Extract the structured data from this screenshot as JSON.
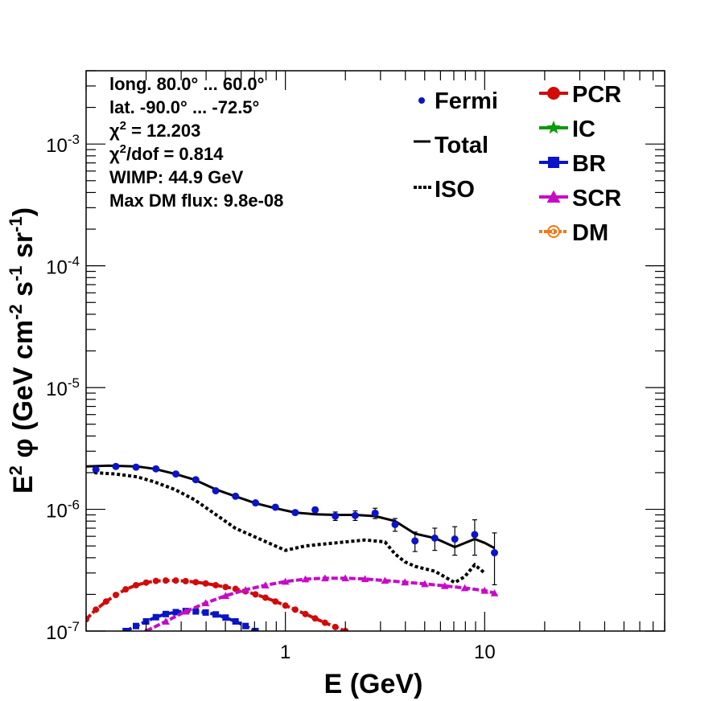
{
  "chart_data": {
    "type": "line",
    "xlabel": "E (GeV)",
    "ylabel_parts": [
      "E",
      "2",
      "  φ (GeV cm",
      "-2",
      " s",
      "-1",
      " sr",
      "-1",
      ")"
    ],
    "xscale": "log",
    "yscale": "log",
    "xlim": [
      0.1,
      80
    ],
    "ylim": [
      1e-07,
      0.004
    ],
    "x_ticks": [
      {
        "value": 1,
        "label": "1"
      },
      {
        "value": 10,
        "label": "10"
      }
    ],
    "y_ticks": [
      {
        "value": 1e-07,
        "mant": "10",
        "exp": "-7"
      },
      {
        "value": 1e-06,
        "mant": "10",
        "exp": "-6"
      },
      {
        "value": 1e-05,
        "mant": "10",
        "exp": "-5"
      },
      {
        "value": 0.0001,
        "mant": "10",
        "exp": "-4"
      },
      {
        "value": 0.001,
        "mant": "10",
        "exp": "-3"
      }
    ],
    "info_lines": [
      {
        "text": "long. 80.0° ... 60.0°"
      },
      {
        "text": "lat. -90.0° ... -72.5°"
      },
      {
        "pre": "χ",
        "sup": "2",
        "post": " = 12.203"
      },
      {
        "pre": "χ",
        "sup": "2",
        "post": "/dof = 0.814"
      },
      {
        "text": "WIMP: 44.9 GeV"
      },
      {
        "text": "Max DM flux: 9.8e-08"
      }
    ],
    "legend_left": [
      {
        "name": "Fermi",
        "style": "dot",
        "color": "#0a14c8"
      },
      {
        "name": "Total",
        "style": "solid",
        "color": "#000000"
      },
      {
        "name": "ISO",
        "style": "dotted",
        "color": "#000000"
      }
    ],
    "legend_right": [
      {
        "name": "PCR",
        "style": "circle",
        "color": "#d20a0a"
      },
      {
        "name": "IC",
        "style": "star",
        "color": "#0a9b0a"
      },
      {
        "name": "BR",
        "style": "square",
        "color": "#0a14c8"
      },
      {
        "name": "SCR",
        "style": "triangle",
        "color": "#c80ac8"
      },
      {
        "name": "DM",
        "style": "opencircle",
        "color": "#f07814"
      }
    ],
    "fermi": {
      "color": "#0a14c8",
      "points": [
        {
          "x": 0.112,
          "y": 2.12e-06,
          "err": 3e-08
        },
        {
          "x": 0.141,
          "y": 2.25e-06,
          "err": 3e-08
        },
        {
          "x": 0.178,
          "y": 2.22e-06,
          "err": 3e-08
        },
        {
          "x": 0.224,
          "y": 2.15e-06,
          "err": 3e-08
        },
        {
          "x": 0.282,
          "y": 1.95e-06,
          "err": 3e-08
        },
        {
          "x": 0.355,
          "y": 1.75e-06,
          "err": 3e-08
        },
        {
          "x": 0.447,
          "y": 1.42e-06,
          "err": 3e-08
        },
        {
          "x": 0.562,
          "y": 1.28e-06,
          "err": 3e-08
        },
        {
          "x": 0.708,
          "y": 1.13e-06,
          "err": 3e-08
        },
        {
          "x": 0.891,
          "y": 1.04e-06,
          "err": 3e-08
        },
        {
          "x": 1.12,
          "y": 9.4e-07,
          "err": 4e-08
        },
        {
          "x": 1.41,
          "y": 9.9e-07,
          "err": 5e-08
        },
        {
          "x": 1.78,
          "y": 8.8e-07,
          "err": 7e-08
        },
        {
          "x": 2.24,
          "y": 8.9e-07,
          "err": 8e-08
        },
        {
          "x": 2.82,
          "y": 9.3e-07,
          "err": 9e-08
        },
        {
          "x": 3.55,
          "y": 7.5e-07,
          "err": 9e-08
        },
        {
          "x": 4.47,
          "y": 5.5e-07,
          "err": 1e-07
        },
        {
          "x": 5.62,
          "y": 5.8e-07,
          "err": 1.2e-07
        },
        {
          "x": 7.08,
          "y": 5.7e-07,
          "err": 1.5e-07
        },
        {
          "x": 8.91,
          "y": 6.2e-07,
          "err": 2e-07
        },
        {
          "x": 11.2,
          "y": 4.4e-07,
          "err": 2e-07
        }
      ]
    },
    "series": [
      {
        "name": "Total",
        "style": "solid",
        "color": "#000000",
        "x": [
          0.1,
          0.13,
          0.18,
          0.22,
          0.28,
          0.35,
          0.45,
          0.56,
          0.71,
          0.89,
          1.12,
          1.41,
          1.78,
          2.24,
          2.82,
          3.55,
          4.47,
          5.62,
          7.08,
          8.91,
          10.0,
          11.2
        ],
        "y": [
          2.25e-06,
          2.28e-06,
          2.25e-06,
          2.15e-06,
          1.95e-06,
          1.75e-06,
          1.45e-06,
          1.28e-06,
          1.12e-06,
          1.02e-06,
          9.4e-07,
          9.1e-07,
          9e-07,
          9e-07,
          8.8e-07,
          8e-07,
          6.3e-07,
          5.8e-07,
          4.9e-07,
          5.7e-07,
          5.3e-07,
          4.8e-07
        ]
      },
      {
        "name": "ISO",
        "style": "dotted",
        "color": "#000000",
        "x": [
          0.11,
          0.14,
          0.18,
          0.22,
          0.28,
          0.35,
          0.45,
          0.56,
          0.71,
          0.89,
          1.0,
          1.26,
          1.58,
          2.0,
          2.51,
          3.16,
          3.55,
          3.98,
          4.47,
          5.62,
          7.08,
          7.94,
          8.91,
          10.0
        ],
        "y": [
          2e-06,
          1.95e-06,
          1.85e-06,
          1.68e-06,
          1.45e-06,
          1.2e-06,
          9e-07,
          7e-07,
          5.9e-07,
          5e-07,
          4.6e-07,
          5e-07,
          5.2e-07,
          5.4e-07,
          5.6e-07,
          5.4e-07,
          4.3e-07,
          3.7e-07,
          3.4e-07,
          3.1e-07,
          2.5e-07,
          2.8e-07,
          3.5e-07,
          3e-07
        ]
      },
      {
        "name": "PCR",
        "style": "circle",
        "color": "#d20a0a",
        "x": [
          0.1,
          0.112,
          0.126,
          0.141,
          0.158,
          0.178,
          0.2,
          0.224,
          0.251,
          0.282,
          0.316,
          0.355,
          0.398,
          0.447,
          0.501,
          0.562,
          0.631,
          0.708,
          0.794,
          0.891,
          1.0,
          1.12,
          1.26,
          1.41,
          1.58,
          1.78,
          2.0,
          2.24,
          2.51,
          2.82,
          3.16,
          3.55
        ],
        "y": [
          1.25e-07,
          1.5e-07,
          1.75e-07,
          1.98e-07,
          2.2e-07,
          2.38e-07,
          2.5e-07,
          2.58e-07,
          2.6e-07,
          2.6e-07,
          2.57e-07,
          2.52e-07,
          2.46e-07,
          2.38e-07,
          2.3e-07,
          2.22e-07,
          2.12e-07,
          2e-07,
          1.88e-07,
          1.75e-07,
          1.62e-07,
          1.5e-07,
          1.38e-07,
          1.27e-07,
          1.17e-07,
          1.08e-07,
          1e-07,
          9.2e-08,
          8.5e-08,
          7.9e-08,
          7.3e-08,
          6.8e-08
        ]
      },
      {
        "name": "BR",
        "style": "square",
        "color": "#0a14c8",
        "x": [
          0.158,
          0.178,
          0.2,
          0.224,
          0.251,
          0.282,
          0.316,
          0.355,
          0.398,
          0.447,
          0.501,
          0.562,
          0.631,
          0.708
        ],
        "y": [
          1e-07,
          1.1e-07,
          1.2e-07,
          1.3e-07,
          1.38e-07,
          1.43e-07,
          1.46e-07,
          1.45e-07,
          1.42e-07,
          1.37e-07,
          1.29e-07,
          1.2e-07,
          1.1e-07,
          1e-07
        ]
      },
      {
        "name": "SCR",
        "style": "triangle",
        "color": "#c80ac8",
        "x": [
          0.2,
          0.251,
          0.316,
          0.398,
          0.501,
          0.631,
          0.794,
          1.0,
          1.26,
          1.58,
          2.0,
          2.51,
          3.16,
          3.98,
          5.01,
          6.31,
          7.94,
          10.0,
          11.2
        ],
        "y": [
          1e-07,
          1.2e-07,
          1.45e-07,
          1.7e-07,
          1.95e-07,
          2.18e-07,
          2.38e-07,
          2.55e-07,
          2.67e-07,
          2.72e-07,
          2.72e-07,
          2.68e-07,
          2.6e-07,
          2.52e-07,
          2.44e-07,
          2.35e-07,
          2.26e-07,
          2.15e-07,
          2.05e-07
        ]
      }
    ]
  }
}
